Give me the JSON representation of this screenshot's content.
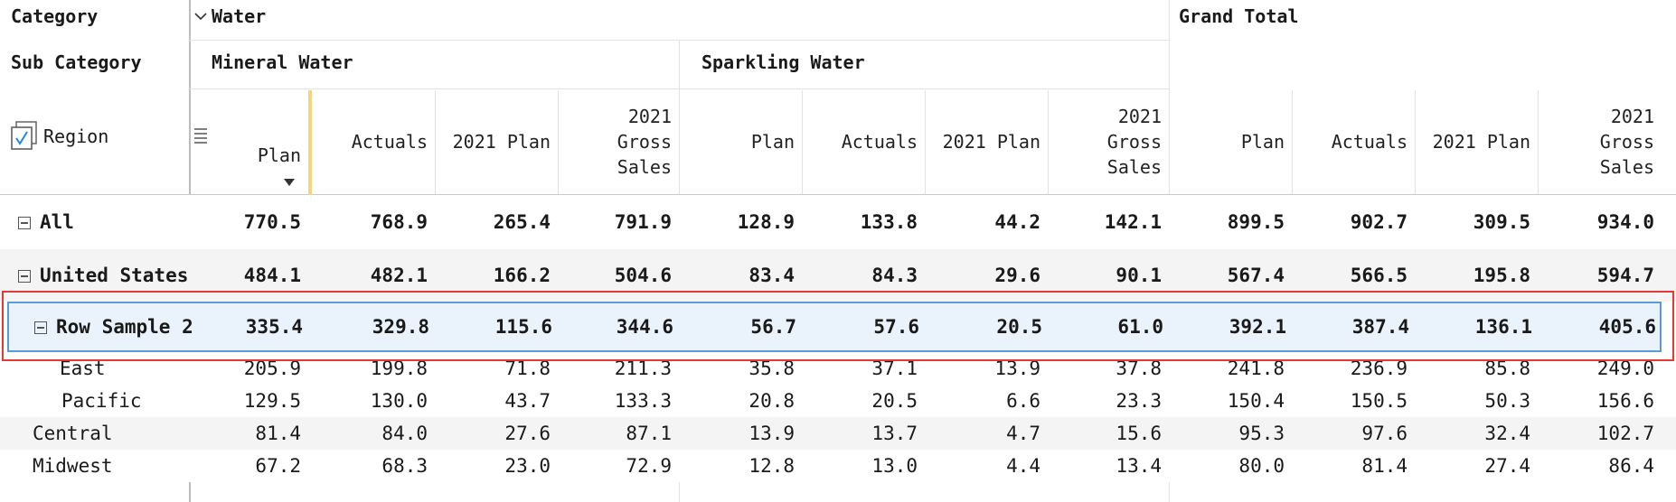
{
  "headers": {
    "category_label": "Category",
    "subcategory_label": "Sub Category",
    "region_label": "Region",
    "water_label": "Water",
    "grand_total_label": "Grand Total",
    "mineral_water_label": "Mineral Water",
    "sparkling_water_label": "Sparkling Water",
    "measures": [
      "Plan",
      "Actuals",
      "2021 Plan",
      "2021 Gross Sales",
      "Plan",
      "Actuals",
      "2021 Plan",
      "2021 Gross Sales",
      "Plan",
      "Actuals",
      "2021 Plan",
      "2021 Gross Sales"
    ]
  },
  "rows": [
    {
      "label": "All",
      "level": 0,
      "bold": true,
      "collapsible": true,
      "values": [
        "770.5",
        "768.9",
        "265.4",
        "791.9",
        "128.9",
        "133.8",
        "44.2",
        "142.1",
        "899.5",
        "902.7",
        "309.5",
        "934.0"
      ]
    },
    {
      "label": "United States",
      "level": 0,
      "bold": true,
      "collapsible": true,
      "values": [
        "484.1",
        "482.1",
        "166.2",
        "504.6",
        "83.4",
        "84.3",
        "29.6",
        "90.1",
        "567.4",
        "566.5",
        "195.8",
        "594.7"
      ]
    },
    {
      "label": "Row Sample 2",
      "level": 1,
      "bold": true,
      "collapsible": true,
      "selected": true,
      "values": [
        "335.4",
        "329.8",
        "115.6",
        "344.6",
        "56.7",
        "57.6",
        "20.5",
        "61.0",
        "392.1",
        "387.4",
        "136.1",
        "405.6"
      ]
    },
    {
      "label": "East",
      "level": 2,
      "bold": false,
      "collapsible": false,
      "values": [
        "205.9",
        "199.8",
        "71.8",
        "211.3",
        "35.8",
        "37.1",
        "13.9",
        "37.8",
        "241.8",
        "236.9",
        "85.8",
        "249.0"
      ]
    },
    {
      "label": "Pacific",
      "level": 2,
      "bold": false,
      "collapsible": false,
      "values": [
        "129.5",
        "130.0",
        "43.7",
        "133.3",
        "20.8",
        "20.5",
        "6.6",
        "23.3",
        "150.4",
        "150.5",
        "50.3",
        "156.6"
      ]
    },
    {
      "label": "Central",
      "level": 1,
      "bold": false,
      "collapsible": false,
      "values": [
        "81.4",
        "84.0",
        "27.6",
        "87.1",
        "13.9",
        "13.7",
        "4.7",
        "15.6",
        "95.3",
        "97.6",
        "32.4",
        "102.7"
      ]
    },
    {
      "label": "Midwest",
      "level": 1,
      "bold": false,
      "collapsible": false,
      "values": [
        "67.2",
        "68.3",
        "23.0",
        "72.9",
        "12.8",
        "13.0",
        "4.4",
        "13.4",
        "80.0",
        "81.4",
        "27.4",
        "86.4"
      ]
    }
  ],
  "colors": {
    "highlight": "#e53935",
    "selection_border": "#5b9bd5",
    "selection_fill": "#eaf2fb",
    "sort_marker": "#f2d57e"
  }
}
